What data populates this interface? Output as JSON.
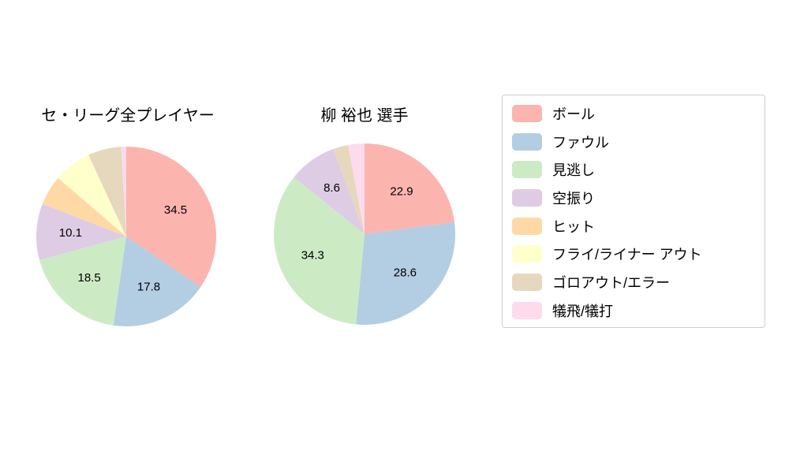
{
  "legend": {
    "items": [
      {
        "label": "ボール",
        "color": "#fbb4ae"
      },
      {
        "label": "ファウル",
        "color": "#b3cde3"
      },
      {
        "label": "見逃し",
        "color": "#ccebc5"
      },
      {
        "label": "空振り",
        "color": "#decbe4"
      },
      {
        "label": "ヒット",
        "color": "#fed9a6"
      },
      {
        "label": "フライ/ライナー アウト",
        "color": "#ffffcc"
      },
      {
        "label": "ゴロアウト/エラー",
        "color": "#e5d8bd"
      },
      {
        "label": "犠飛/犠打",
        "color": "#fddaec"
      }
    ]
  },
  "chart_data": [
    {
      "type": "pie",
      "title": "セ・リーグ全プレイヤー",
      "labels": [
        "ボール",
        "ファウル",
        "見逃し",
        "空振り",
        "ヒット",
        "フライ/ライナー アウト",
        "ゴロアウト/エラー",
        "犠飛/犠打"
      ],
      "values": [
        34.5,
        17.8,
        18.5,
        10.1,
        5.4,
        6.8,
        6.0,
        0.9
      ],
      "labeled_values": [
        34.5,
        17.8,
        18.5,
        10.1
      ],
      "colors": [
        "#fbb4ae",
        "#b3cde3",
        "#ccebc5",
        "#decbe4",
        "#fed9a6",
        "#ffffcc",
        "#e5d8bd",
        "#fddaec"
      ],
      "start_angle_deg": 90,
      "direction": "clockwise",
      "label_threshold": 8,
      "legend_position": "right"
    },
    {
      "type": "pie",
      "title": "柳 裕也 選手",
      "labels": [
        "ボール",
        "ファウル",
        "見逃し",
        "空振り",
        "ヒット",
        "フライ/ライナー アウト",
        "ゴロアウト/エラー",
        "犠飛/犠打"
      ],
      "values": [
        22.9,
        28.6,
        34.3,
        8.6,
        0,
        0,
        2.7,
        2.9
      ],
      "labeled_values": [
        22.9,
        28.6,
        34.3,
        8.6
      ],
      "colors": [
        "#fbb4ae",
        "#b3cde3",
        "#ccebc5",
        "#decbe4",
        "#fed9a6",
        "#ffffcc",
        "#e5d8bd",
        "#fddaec"
      ],
      "start_angle_deg": 90,
      "direction": "clockwise",
      "label_threshold": 8,
      "legend_position": "right"
    }
  ]
}
